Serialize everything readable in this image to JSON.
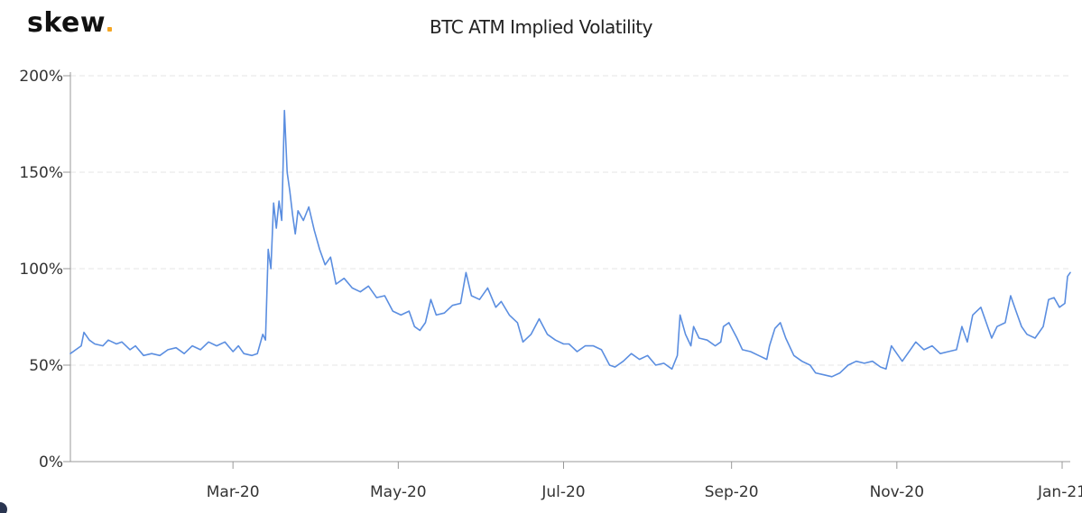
{
  "brand": {
    "name": "skew",
    "dot_color": "#f5a623"
  },
  "header": {
    "title": "BTC ATM Implied Volatility"
  },
  "colors": {
    "series_line": "#5b8ee0",
    "axis": "#999999",
    "grid": "#e6e6e6",
    "tick_text": "#333333"
  },
  "chart_data": {
    "type": "line",
    "title": "BTC ATM Implied Volatility",
    "xlabel": "",
    "ylabel": "",
    "x_axis": {
      "type": "date",
      "range": [
        "2020-01-01",
        "2021-01-04"
      ],
      "tick_dates": [
        "2020-03-01",
        "2020-05-01",
        "2020-07-01",
        "2020-09-01",
        "2020-11-01",
        "2021-01-01"
      ],
      "tick_labels": [
        "Mar-20",
        "May-20",
        "Jul-20",
        "Sep-20",
        "Nov-20",
        "Jan-21"
      ]
    },
    "y_axis": {
      "range": [
        0,
        200
      ],
      "unit": "%",
      "ticks": [
        0,
        50,
        100,
        150,
        200
      ],
      "tick_labels": [
        "0%",
        "50%",
        "100%",
        "150%",
        "200%"
      ]
    },
    "grid": true,
    "legend": "none",
    "series": [
      {
        "points": [
          [
            "2020-01-01",
            56
          ],
          [
            "2020-01-03",
            58
          ],
          [
            "2020-01-05",
            60
          ],
          [
            "2020-01-06",
            67
          ],
          [
            "2020-01-08",
            63
          ],
          [
            "2020-01-10",
            61
          ],
          [
            "2020-01-13",
            60
          ],
          [
            "2020-01-15",
            63
          ],
          [
            "2020-01-18",
            61
          ],
          [
            "2020-01-20",
            62
          ],
          [
            "2020-01-23",
            58
          ],
          [
            "2020-01-25",
            60
          ],
          [
            "2020-01-28",
            55
          ],
          [
            "2020-01-31",
            56
          ],
          [
            "2020-02-03",
            55
          ],
          [
            "2020-02-06",
            58
          ],
          [
            "2020-02-09",
            59
          ],
          [
            "2020-02-12",
            56
          ],
          [
            "2020-02-15",
            60
          ],
          [
            "2020-02-18",
            58
          ],
          [
            "2020-02-21",
            62
          ],
          [
            "2020-02-24",
            60
          ],
          [
            "2020-02-27",
            62
          ],
          [
            "2020-03-01",
            57
          ],
          [
            "2020-03-03",
            60
          ],
          [
            "2020-03-05",
            56
          ],
          [
            "2020-03-08",
            55
          ],
          [
            "2020-03-10",
            56
          ],
          [
            "2020-03-12",
            66
          ],
          [
            "2020-03-13",
            63
          ],
          [
            "2020-03-14",
            110
          ],
          [
            "2020-03-15",
            100
          ],
          [
            "2020-03-16",
            134
          ],
          [
            "2020-03-17",
            121
          ],
          [
            "2020-03-18",
            135
          ],
          [
            "2020-03-19",
            125
          ],
          [
            "2020-03-20",
            182
          ],
          [
            "2020-03-21",
            150
          ],
          [
            "2020-03-22",
            140
          ],
          [
            "2020-03-23",
            128
          ],
          [
            "2020-03-24",
            118
          ],
          [
            "2020-03-25",
            130
          ],
          [
            "2020-03-27",
            125
          ],
          [
            "2020-03-29",
            132
          ],
          [
            "2020-03-31",
            120
          ],
          [
            "2020-04-02",
            110
          ],
          [
            "2020-04-04",
            102
          ],
          [
            "2020-04-06",
            106
          ],
          [
            "2020-04-08",
            92
          ],
          [
            "2020-04-11",
            95
          ],
          [
            "2020-04-14",
            90
          ],
          [
            "2020-04-17",
            88
          ],
          [
            "2020-04-20",
            91
          ],
          [
            "2020-04-23",
            85
          ],
          [
            "2020-04-26",
            86
          ],
          [
            "2020-04-29",
            78
          ],
          [
            "2020-05-02",
            76
          ],
          [
            "2020-05-05",
            78
          ],
          [
            "2020-05-07",
            70
          ],
          [
            "2020-05-09",
            68
          ],
          [
            "2020-05-11",
            72
          ],
          [
            "2020-05-13",
            84
          ],
          [
            "2020-05-15",
            76
          ],
          [
            "2020-05-18",
            77
          ],
          [
            "2020-05-21",
            81
          ],
          [
            "2020-05-24",
            82
          ],
          [
            "2020-05-26",
            98
          ],
          [
            "2020-05-28",
            86
          ],
          [
            "2020-05-31",
            84
          ],
          [
            "2020-06-03",
            90
          ],
          [
            "2020-06-06",
            80
          ],
          [
            "2020-06-08",
            83
          ],
          [
            "2020-06-11",
            76
          ],
          [
            "2020-06-14",
            72
          ],
          [
            "2020-06-16",
            62
          ],
          [
            "2020-06-19",
            66
          ],
          [
            "2020-06-22",
            74
          ],
          [
            "2020-06-25",
            66
          ],
          [
            "2020-06-28",
            63
          ],
          [
            "2020-07-01",
            61
          ],
          [
            "2020-07-03",
            61
          ],
          [
            "2020-07-06",
            57
          ],
          [
            "2020-07-09",
            60
          ],
          [
            "2020-07-12",
            60
          ],
          [
            "2020-07-15",
            58
          ],
          [
            "2020-07-18",
            50
          ],
          [
            "2020-07-20",
            49
          ],
          [
            "2020-07-23",
            52
          ],
          [
            "2020-07-26",
            56
          ],
          [
            "2020-07-29",
            53
          ],
          [
            "2020-08-01",
            55
          ],
          [
            "2020-08-04",
            50
          ],
          [
            "2020-08-07",
            51
          ],
          [
            "2020-08-10",
            48
          ],
          [
            "2020-08-12",
            55
          ],
          [
            "2020-08-13",
            76
          ],
          [
            "2020-08-15",
            66
          ],
          [
            "2020-08-17",
            60
          ],
          [
            "2020-08-18",
            70
          ],
          [
            "2020-08-20",
            64
          ],
          [
            "2020-08-23",
            63
          ],
          [
            "2020-08-26",
            60
          ],
          [
            "2020-08-28",
            62
          ],
          [
            "2020-08-29",
            70
          ],
          [
            "2020-08-31",
            72
          ],
          [
            "2020-09-03",
            64
          ],
          [
            "2020-09-05",
            58
          ],
          [
            "2020-09-08",
            57
          ],
          [
            "2020-09-11",
            55
          ],
          [
            "2020-09-14",
            53
          ],
          [
            "2020-09-15",
            60
          ],
          [
            "2020-09-17",
            69
          ],
          [
            "2020-09-19",
            72
          ],
          [
            "2020-09-21",
            64
          ],
          [
            "2020-09-24",
            55
          ],
          [
            "2020-09-27",
            52
          ],
          [
            "2020-09-30",
            50
          ],
          [
            "2020-10-02",
            46
          ],
          [
            "2020-10-05",
            45
          ],
          [
            "2020-10-08",
            44
          ],
          [
            "2020-10-11",
            46
          ],
          [
            "2020-10-14",
            50
          ],
          [
            "2020-10-17",
            52
          ],
          [
            "2020-10-20",
            51
          ],
          [
            "2020-10-23",
            52
          ],
          [
            "2020-10-26",
            49
          ],
          [
            "2020-10-28",
            48
          ],
          [
            "2020-10-30",
            60
          ],
          [
            "2020-11-01",
            56
          ],
          [
            "2020-11-03",
            52
          ],
          [
            "2020-11-06",
            58
          ],
          [
            "2020-11-08",
            62
          ],
          [
            "2020-11-11",
            58
          ],
          [
            "2020-11-14",
            60
          ],
          [
            "2020-11-17",
            56
          ],
          [
            "2020-11-20",
            57
          ],
          [
            "2020-11-23",
            58
          ],
          [
            "2020-11-25",
            70
          ],
          [
            "2020-11-27",
            62
          ],
          [
            "2020-11-29",
            76
          ],
          [
            "2020-12-02",
            80
          ],
          [
            "2020-12-04",
            72
          ],
          [
            "2020-12-06",
            64
          ],
          [
            "2020-12-08",
            70
          ],
          [
            "2020-12-11",
            72
          ],
          [
            "2020-12-13",
            86
          ],
          [
            "2020-12-15",
            78
          ],
          [
            "2020-12-17",
            70
          ],
          [
            "2020-12-19",
            66
          ],
          [
            "2020-12-22",
            64
          ],
          [
            "2020-12-25",
            70
          ],
          [
            "2020-12-27",
            84
          ],
          [
            "2020-12-29",
            85
          ],
          [
            "2020-12-31",
            80
          ],
          [
            "2021-01-02",
            82
          ],
          [
            "2021-01-03",
            96
          ],
          [
            "2021-01-04",
            98
          ]
        ]
      }
    ]
  }
}
